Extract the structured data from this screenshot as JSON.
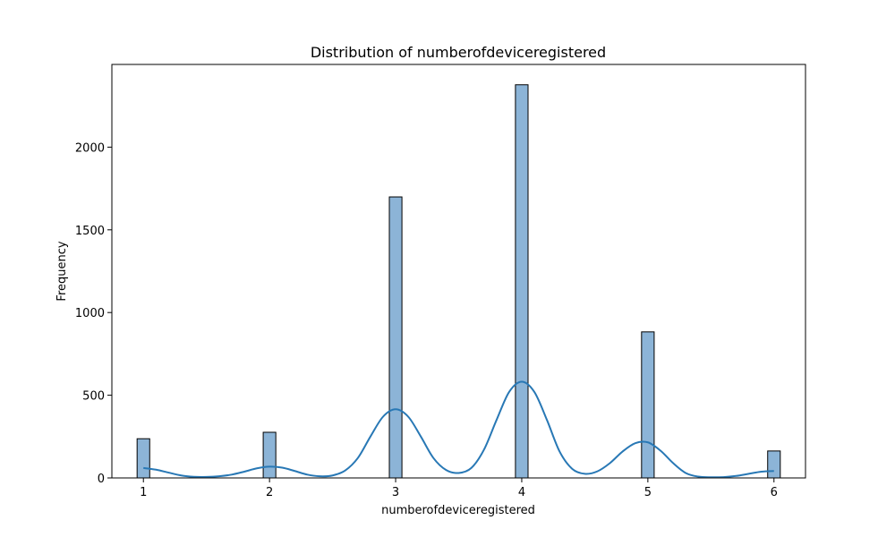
{
  "chart_data": {
    "type": "bar",
    "title": "Distribution of numberofdeviceregistered",
    "xlabel": "numberofdeviceregistered",
    "ylabel": "Frequency",
    "x_ticks": [
      1,
      2,
      3,
      4,
      5,
      6
    ],
    "y_ticks": [
      0,
      500,
      1000,
      1500,
      2000
    ],
    "xlim": [
      0.75,
      6.25
    ],
    "ylim": [
      0,
      2500
    ],
    "grid": false,
    "bar_width": 0.1,
    "bars": [
      {
        "x": 1,
        "value": 237
      },
      {
        "x": 2,
        "value": 276
      },
      {
        "x": 3,
        "value": 1699
      },
      {
        "x": 4,
        "value": 2377
      },
      {
        "x": 5,
        "value": 883
      },
      {
        "x": 6,
        "value": 163
      }
    ],
    "kde": {
      "name": "density estimate",
      "x": [
        1.0,
        1.1,
        1.2,
        1.3,
        1.4,
        1.5,
        1.6,
        1.7,
        1.8,
        1.9,
        2.0,
        2.1,
        2.2,
        2.3,
        2.4,
        2.5,
        2.6,
        2.7,
        2.8,
        2.9,
        3.0,
        3.1,
        3.2,
        3.3,
        3.4,
        3.5,
        3.6,
        3.7,
        3.8,
        3.9,
        4.0,
        4.1,
        4.2,
        4.3,
        4.4,
        4.5,
        4.6,
        4.7,
        4.8,
        4.9,
        5.0,
        5.1,
        5.2,
        5.3,
        5.4,
        5.5,
        5.6,
        5.7,
        5.8,
        5.9,
        6.0
      ],
      "y": [
        60,
        50,
        32,
        15,
        7,
        6,
        10,
        20,
        38,
        58,
        68,
        62,
        42,
        20,
        10,
        15,
        45,
        120,
        250,
        370,
        415,
        370,
        250,
        120,
        48,
        30,
        60,
        170,
        350,
        520,
        582,
        520,
        350,
        160,
        55,
        25,
        40,
        90,
        160,
        210,
        215,
        165,
        90,
        30,
        8,
        4,
        5,
        12,
        25,
        38,
        42
      ]
    },
    "colors": {
      "bar_fill": "#8cb4d7",
      "bar_edge": "#000000",
      "kde_line": "#2878b5"
    }
  }
}
